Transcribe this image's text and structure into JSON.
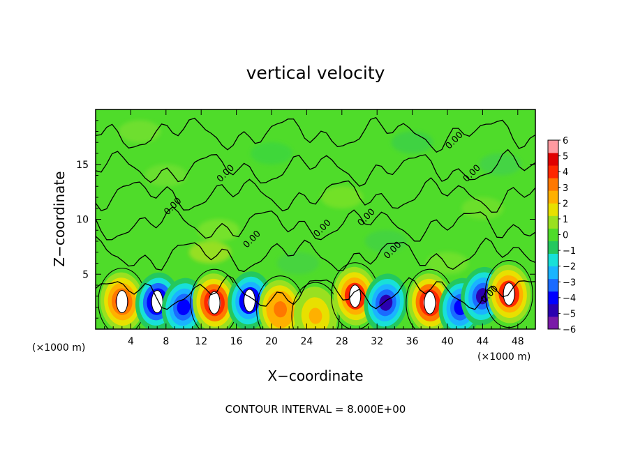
{
  "chart_data": {
    "type": "heatmap",
    "title": "vertical velocity",
    "xlabel": "X−coordinate",
    "ylabel": "Z−coordinate",
    "x_unit": "(×1000 m)",
    "z_unit": "(×1000 m)",
    "xlim": [
      0,
      50
    ],
    "ylim": [
      0,
      20
    ],
    "x_ticks": [
      "4",
      "8",
      "12",
      "16",
      "20",
      "24",
      "28",
      "32",
      "36",
      "40",
      "44",
      "48"
    ],
    "x_tick_values": [
      4,
      8,
      12,
      16,
      20,
      24,
      28,
      32,
      36,
      40,
      44,
      48
    ],
    "y_ticks": [
      "5",
      "10",
      "15"
    ],
    "y_tick_values": [
      5,
      10,
      15
    ],
    "colorbar": {
      "labels": [
        "6",
        "5",
        "4",
        "3",
        "2",
        "1",
        "0",
        "−1",
        "−2",
        "−3",
        "−4",
        "−5",
        "−6"
      ],
      "min": -6,
      "max": 6,
      "colors": [
        "#7a1aa8",
        "#2a00b0",
        "#0000ff",
        "#1a6bff",
        "#1ab4ff",
        "#18e0d8",
        "#24c85e",
        "#4fdc2a",
        "#9ae020",
        "#e8e000",
        "#ffb000",
        "#ff7800",
        "#ff2800",
        "#e00000",
        "#ff9aa0"
      ]
    },
    "contour_labels": [
      "0.00",
      "0.00",
      "0.00",
      "0.00",
      "0.00",
      "0.00",
      "0.00",
      "0.00",
      "0.00"
    ],
    "footer": "CONTOUR INTERVAL = 8.000E+00",
    "cells": [
      {
        "x": 3.0,
        "z": 2.5,
        "w": 2.5
      },
      {
        "x": 7.0,
        "z": 2.5,
        "w": -2.8
      },
      {
        "x": 10.0,
        "z": 2.0,
        "w": -2.2
      },
      {
        "x": 13.5,
        "z": 2.4,
        "w": 3.0
      },
      {
        "x": 17.5,
        "z": 2.6,
        "w": -2.6
      },
      {
        "x": 21.0,
        "z": 1.8,
        "w": 1.8
      },
      {
        "x": 25.0,
        "z": 1.2,
        "w": 1.0
      },
      {
        "x": 29.5,
        "z": 3.0,
        "w": 2.6
      },
      {
        "x": 33.0,
        "z": 2.4,
        "w": -2.4
      },
      {
        "x": 38.0,
        "z": 2.4,
        "w": 3.0
      },
      {
        "x": 41.5,
        "z": 2.0,
        "w": -2.2
      },
      {
        "x": 44.0,
        "z": 3.0,
        "w": -2.4
      },
      {
        "x": 47.0,
        "z": 3.2,
        "w": 2.6
      }
    ]
  }
}
